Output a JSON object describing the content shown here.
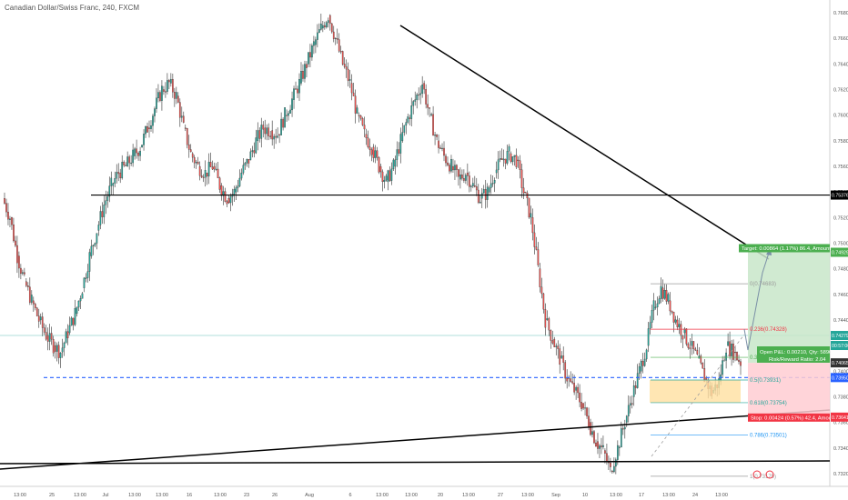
{
  "chart_data": {
    "type": "candlestick",
    "title": "Canadian Dollar/Swiss Franc, 240, FXCM",
    "ylim": [
      0.731,
      0.769
    ],
    "y_ticks": [
      "0.76800",
      "0.76600",
      "0.76400",
      "0.76200",
      "0.76000",
      "0.75800",
      "0.75600",
      "0.75400",
      "0.75200",
      "0.75000",
      "0.74800",
      "0.74600",
      "0.74400",
      "0.74200",
      "0.74000",
      "0.73800",
      "0.73600",
      "0.73400",
      "0.73200"
    ],
    "x_ticks": [
      "13:00",
      "25",
      "13:00",
      "Jul",
      "13:00",
      "13:00",
      "16",
      "13:00",
      "23",
      "26",
      "Aug",
      "6",
      "13:00",
      "13:00",
      "20",
      "13:00",
      "27",
      "13:00",
      "Sep",
      "10",
      "13:00",
      "17",
      "13:00",
      "24",
      "13:00"
    ],
    "price_path": [
      0.7535,
      0.752,
      0.749,
      0.747,
      0.7455,
      0.744,
      0.7428,
      0.742,
      0.7415,
      0.743,
      0.7445,
      0.7465,
      0.749,
      0.751,
      0.753,
      0.7545,
      0.7555,
      0.756,
      0.7568,
      0.7575,
      0.759,
      0.7605,
      0.762,
      0.7625,
      0.7615,
      0.759,
      0.757,
      0.756,
      0.7555,
      0.756,
      0.7545,
      0.7535,
      0.754,
      0.7555,
      0.7565,
      0.758,
      0.759,
      0.7588,
      0.7585,
      0.76,
      0.7612,
      0.7625,
      0.764,
      0.7655,
      0.7668,
      0.7678,
      0.766,
      0.764,
      0.7625,
      0.76,
      0.7585,
      0.7575,
      0.756,
      0.7548,
      0.756,
      0.758,
      0.7598,
      0.7612,
      0.7625,
      0.76,
      0.758,
      0.7568,
      0.756,
      0.755,
      0.7555,
      0.7545,
      0.7535,
      0.754,
      0.7555,
      0.7565,
      0.757,
      0.7565,
      0.754,
      0.752,
      0.748,
      0.744,
      0.7425,
      0.741,
      0.7395,
      0.7385,
      0.7375,
      0.736,
      0.7345,
      0.7338,
      0.7322,
      0.734,
      0.736,
      0.738,
      0.74,
      0.742,
      0.745,
      0.7465,
      0.7455,
      0.744,
      0.743,
      0.742,
      0.741,
      0.7395,
      0.7383,
      0.7392,
      0.742,
      0.7415,
      0.7407
    ],
    "horizontal_lines": [
      {
        "price": 0.75376,
        "label": "0.75376",
        "color": "#000000"
      },
      {
        "price": 0.7395,
        "label": "0.73950",
        "color": "#2962ff"
      },
      {
        "price": 0.74279,
        "label": "0.74279",
        "color": "#26a69a"
      }
    ],
    "fibonacci": [
      {
        "level": "0",
        "value": "0.74683"
      },
      {
        "level": "0.236",
        "value": "0.74328"
      },
      {
        "level": "0.382",
        "value": "0.74108"
      },
      {
        "level": "0.5",
        "value": "0.73931"
      },
      {
        "level": "0.618",
        "value": "0.73754"
      },
      {
        "level": "0.786",
        "value": "0.73501"
      },
      {
        "level": "1",
        "value": "0.73179"
      }
    ],
    "position": {
      "target_label": "Target: 0.00864 (1.17%) 86.4, Amount:",
      "target_price": "0.74929",
      "stop_label": "Stop: 0.00424 (0.57%) 42.4, Amount:",
      "stop_price": "0.73641",
      "pl_label": "Open P&L: 0.00210, Qty: 58962",
      "rr_label": "Risk/Reward Ratio: 2.04",
      "entry_price": "0.74065",
      "countdown": "00:57:00"
    },
    "colors": {
      "up": "#26a69a",
      "down": "#ef5350",
      "target_green": "#4caf50",
      "stop_red": "#f23645",
      "zone_orange": "#ffe0a0"
    }
  }
}
